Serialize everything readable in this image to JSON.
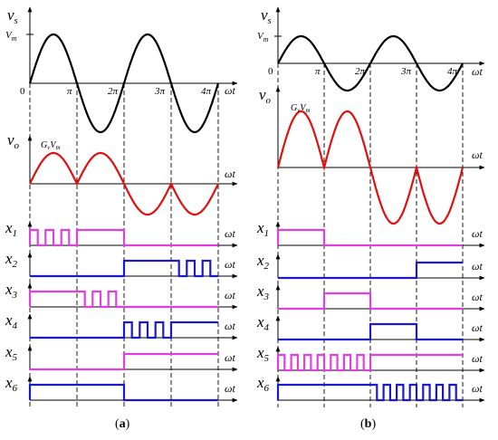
{
  "colors": {
    "vs": "#000000",
    "vo": "#e01010",
    "odd_switch": "#e040e0",
    "even_switch": "#1a1acc",
    "axis": "#000000"
  },
  "labels": {
    "vs_symbol": "v",
    "vs_sub": "s",
    "vo_symbol": "v",
    "vo_sub": "o",
    "vm_symbol": "V",
    "vm_sub": "m",
    "gain_symbol": "G",
    "gain_sub": "v",
    "omega_t": "ωt",
    "zero": "0",
    "pi": "π",
    "two_pi": "2π",
    "three_pi": "3π",
    "four_pi": "4π",
    "x_symbol": "x"
  },
  "switches": [
    "1",
    "2",
    "3",
    "4",
    "5",
    "6"
  ],
  "captions": {
    "a_open": "(",
    "a_letter": "a",
    "a_close": ")",
    "b_open": "(",
    "b_letter": "b",
    "b_close": ")"
  }
}
